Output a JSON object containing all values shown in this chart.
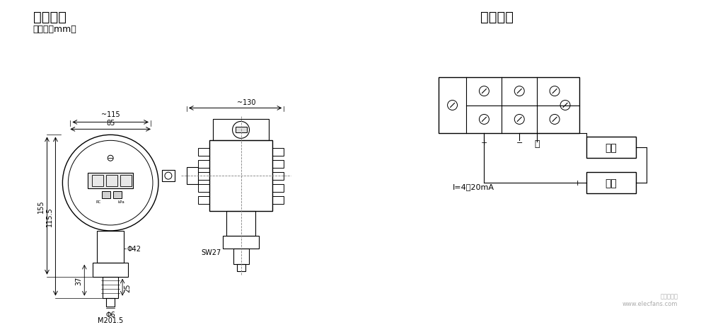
{
  "title_left": "外形结构",
  "title_right": "电气连接",
  "unit_text": "（单位：mm）",
  "bg_color": "#ffffff",
  "line_color": "#000000",
  "font_color": "#000000",
  "watermark": "电子发烧友\nwww.elecfans.com"
}
